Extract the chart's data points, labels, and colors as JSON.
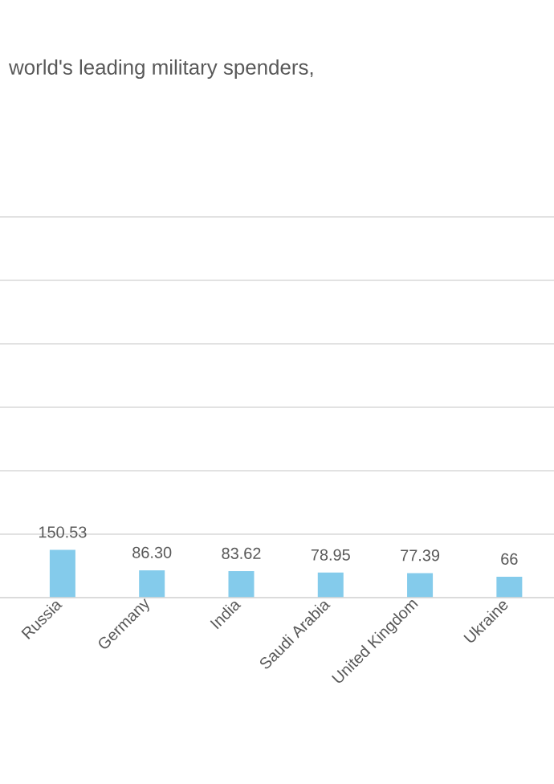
{
  "chart_data": {
    "type": "bar",
    "title": "world's leading military spenders,",
    "categories": [
      "Russia",
      "Germany",
      "India",
      "Saudi Arabia",
      "United Kingdom",
      "Ukraine"
    ],
    "values": [
      150.53,
      86.3,
      83.62,
      78.95,
      77.39,
      66
    ],
    "value_labels": [
      "150.53",
      "86.30",
      "83.62",
      "78.95",
      "77.39",
      "66"
    ],
    "color": "#84cbeb",
    "ylim": [
      0,
      1200
    ],
    "grid": "y"
  }
}
